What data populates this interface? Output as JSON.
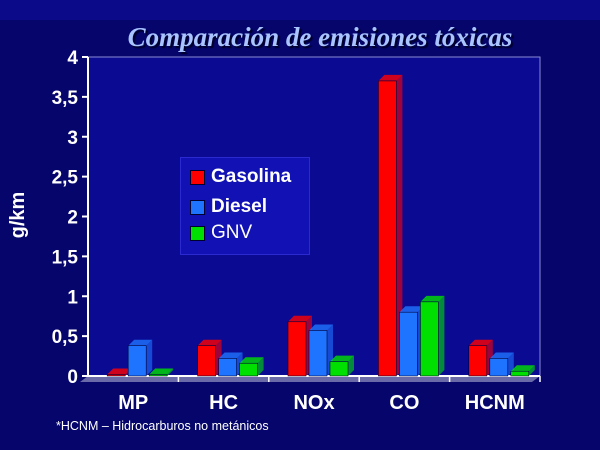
{
  "title": "Comparación de emisiones tóxicas",
  "footnote": "*HCNM – Hidrocarburos no metánicos",
  "chart_data": {
    "type": "bar",
    "title": "Comparación de emisiones tóxicas",
    "xlabel": "",
    "ylabel": "g/km",
    "ylim": [
      0,
      4
    ],
    "yticks": [
      "0",
      "0,5",
      "1",
      "1,5",
      "2",
      "2,5",
      "3",
      "3,5",
      "4"
    ],
    "categories": [
      "MP",
      "HC",
      "NOx",
      "CO",
      "HCNM"
    ],
    "series": [
      {
        "name": "Gasolina",
        "color": "#ff0000",
        "values": [
          0.0,
          0.38,
          0.68,
          3.7,
          0.38
        ]
      },
      {
        "name": "Diesel",
        "color": "#1f74ff",
        "values": [
          0.38,
          0.22,
          0.57,
          0.8,
          0.22
        ]
      },
      {
        "name": "GNV",
        "color": "#00e000",
        "values": [
          0.0,
          0.16,
          0.18,
          0.93,
          0.06
        ]
      }
    ],
    "legend_position": "left-center",
    "grid": false
  }
}
